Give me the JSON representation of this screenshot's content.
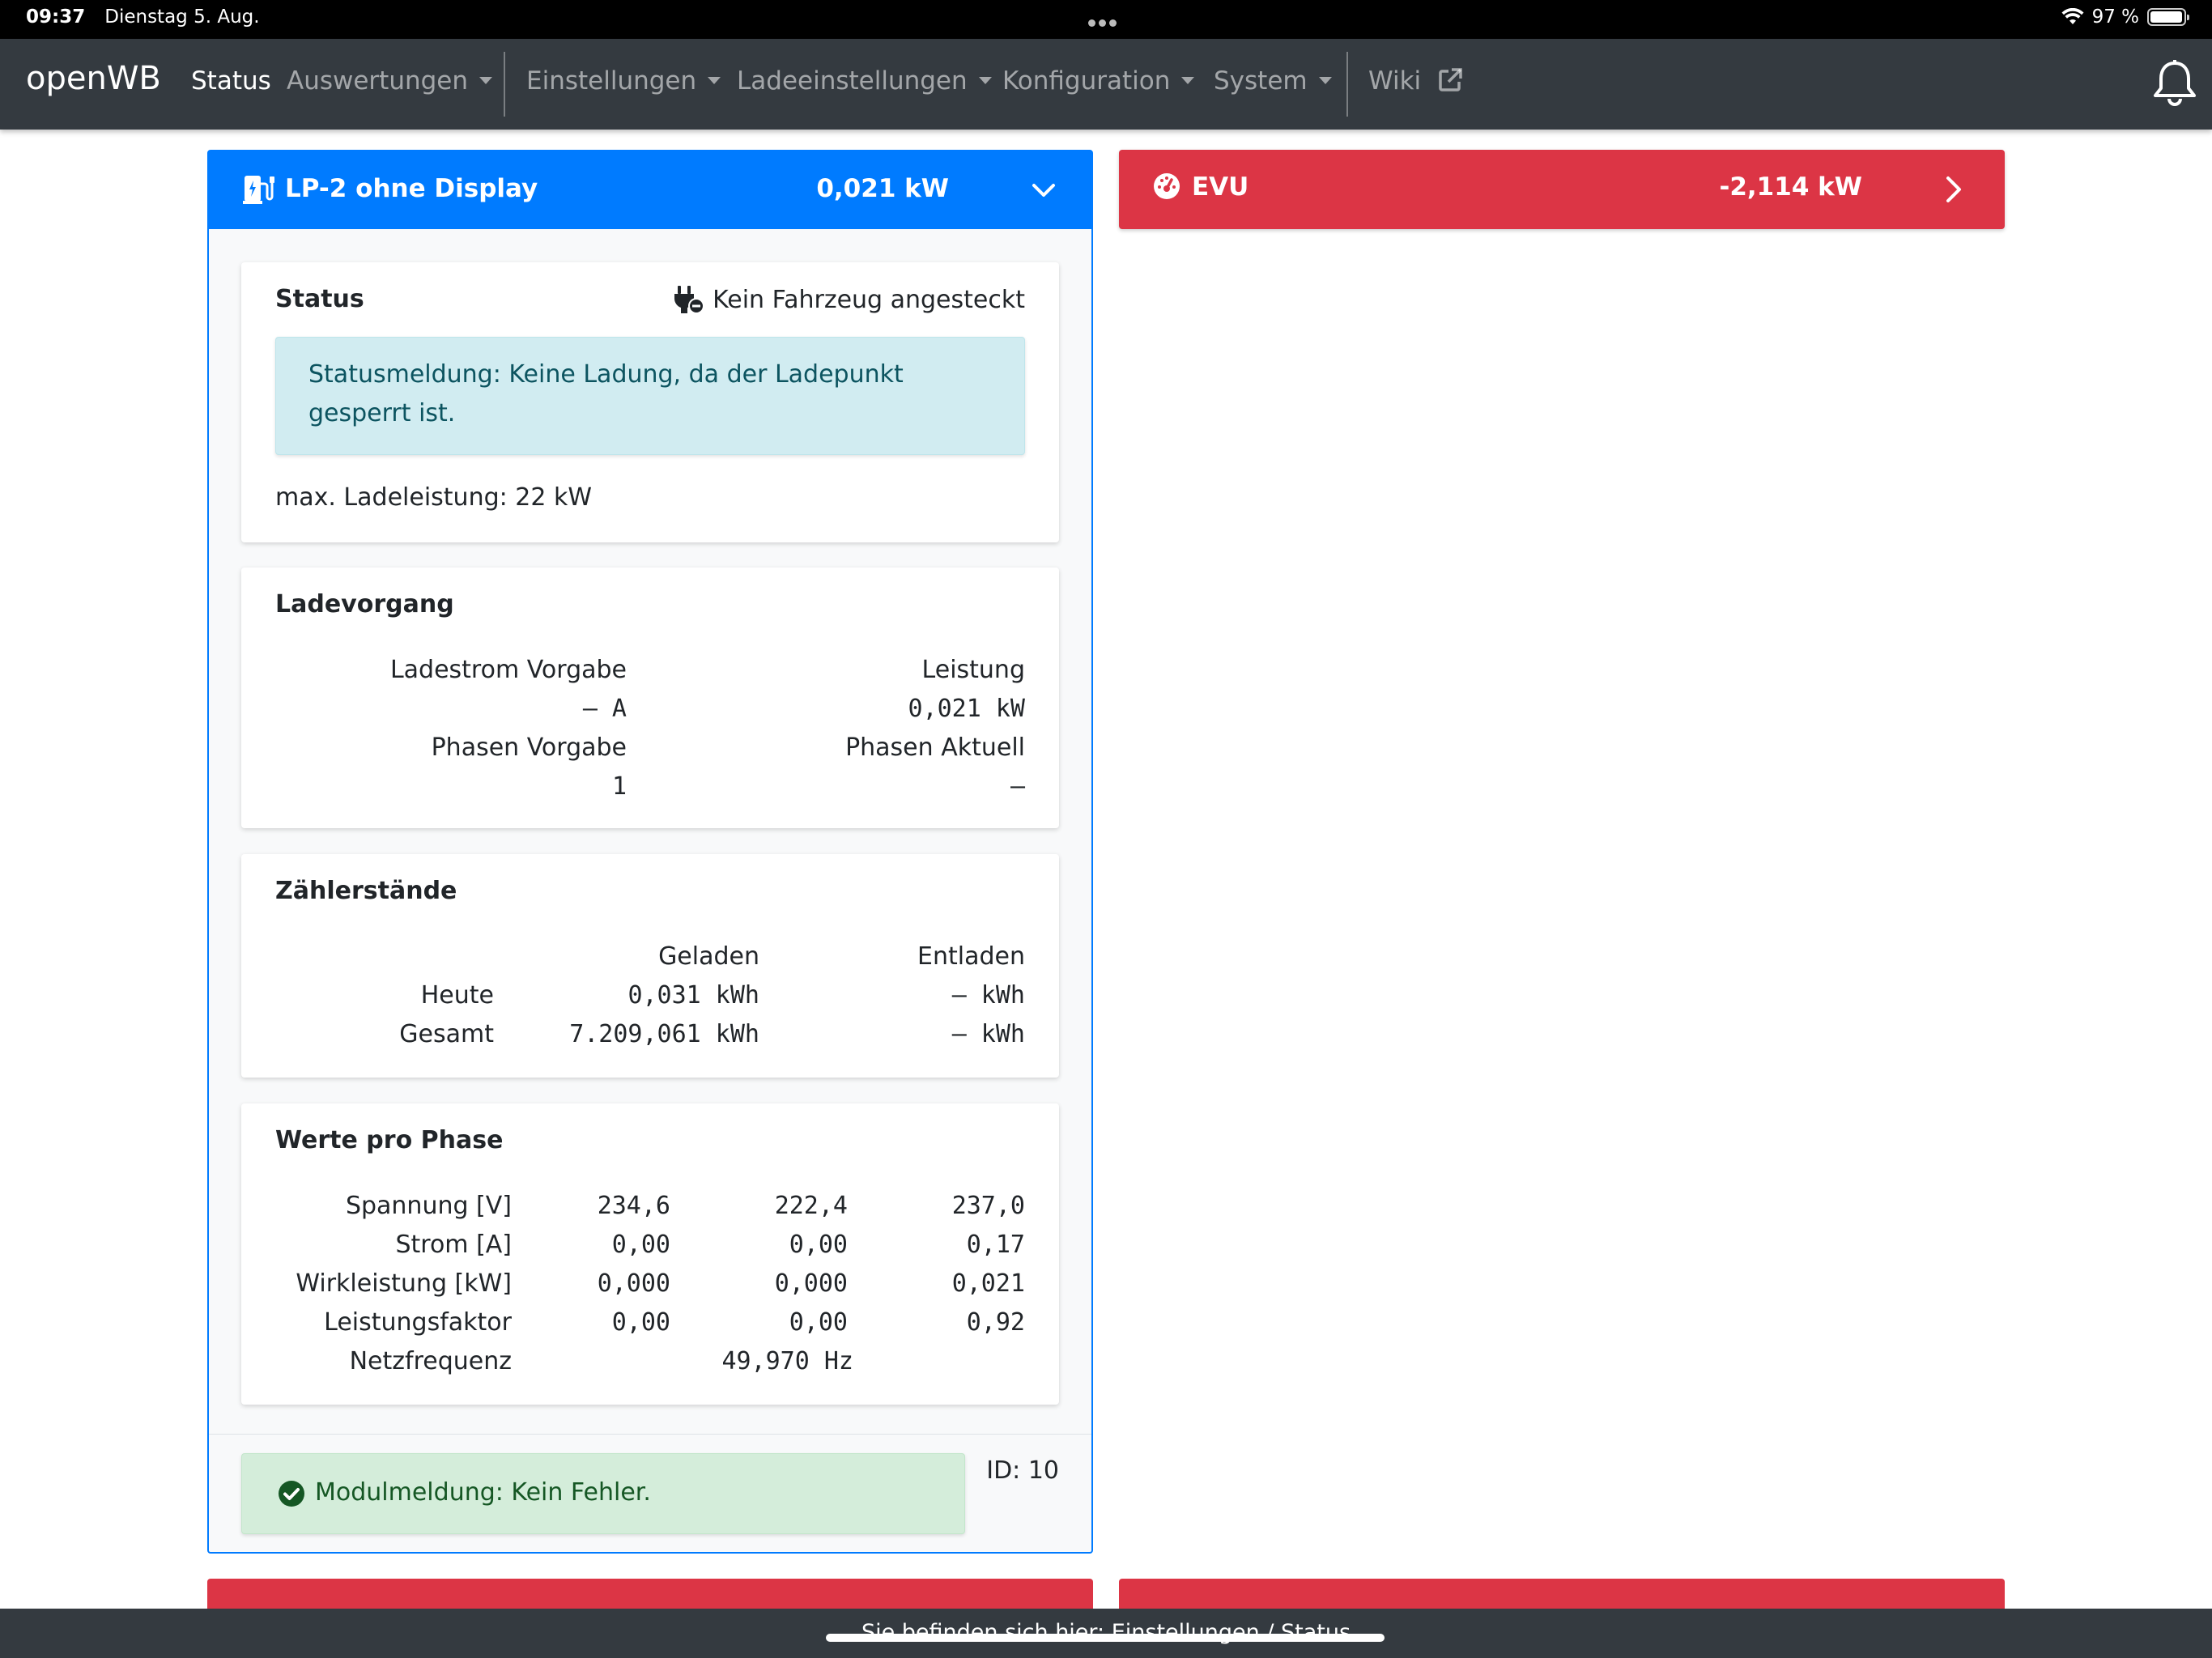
{
  "status_bar": {
    "time": "09:37",
    "date": "Dienstag 5. Aug.",
    "battery": "97 %",
    "battery_level": 0.97
  },
  "navbar": {
    "brand": "openWB",
    "items": [
      {
        "label": "Status"
      },
      {
        "label": "Auswertungen"
      },
      {
        "label": "Einstellungen"
      },
      {
        "label": "Ladeeinstellungen"
      },
      {
        "label": "Konfiguration"
      },
      {
        "label": "System"
      },
      {
        "label": "Wiki"
      }
    ]
  },
  "lp_panel": {
    "title": "LP-2 ohne Display",
    "power": "0,021 kW",
    "status": {
      "title": "Status",
      "vehicle_state": "Kein Fahrzeug angesteckt",
      "message": "Statusmeldung: Keine Ladung, da der Ladepunkt gesperrt ist.",
      "max_power": "max. Ladeleistung: 22 kW"
    },
    "ladevorgang": {
      "title": "Ladevorgang",
      "ladestrom_label": "Ladestrom Vorgabe",
      "ladestrom_value": "– A",
      "leistung_label": "Leistung",
      "leistung_value": "0,021 kW",
      "phasen_vorgabe_label": "Phasen Vorgabe",
      "phasen_vorgabe_value": "1",
      "phasen_aktuell_label": "Phasen Aktuell",
      "phasen_aktuell_value": "–"
    },
    "zaehler": {
      "title": "Zählerstände",
      "col_geladen": "Geladen",
      "col_entladen": "Entladen",
      "rows": [
        {
          "label": "Heute",
          "geladen": "0,031 kWh",
          "entladen": "– kWh"
        },
        {
          "label": "Gesamt",
          "geladen": "7.209,061 kWh",
          "entladen": "– kWh"
        }
      ]
    },
    "phasen": {
      "title": "Werte pro Phase",
      "rows": [
        {
          "label": "Spannung [V]",
          "v": [
            "234,6",
            "222,4",
            "237,0"
          ]
        },
        {
          "label": "Strom [A]",
          "v": [
            "0,00",
            "0,00",
            "0,17"
          ]
        },
        {
          "label": "Wirkleistung [kW]",
          "v": [
            "0,000",
            "0,000",
            "0,021"
          ]
        },
        {
          "label": "Leistungsfaktor",
          "v": [
            "0,00",
            "0,00",
            "0,92"
          ]
        }
      ],
      "freq_label": "Netzfrequenz",
      "freq_value": "49,970 Hz"
    },
    "module_message": "Modulmeldung: Kein Fehler.",
    "id": "ID: 10"
  },
  "evu_panel": {
    "title": "EVU",
    "power": "-2,114 kW"
  },
  "breadcrumb": "Sie befinden sich hier: Einstellungen / Status",
  "colors": {
    "primary": "#007bff",
    "danger": "#dc3545",
    "navbar": "#343a40",
    "info_bg": "#d1ecf1",
    "success_bg": "#d4edda"
  }
}
